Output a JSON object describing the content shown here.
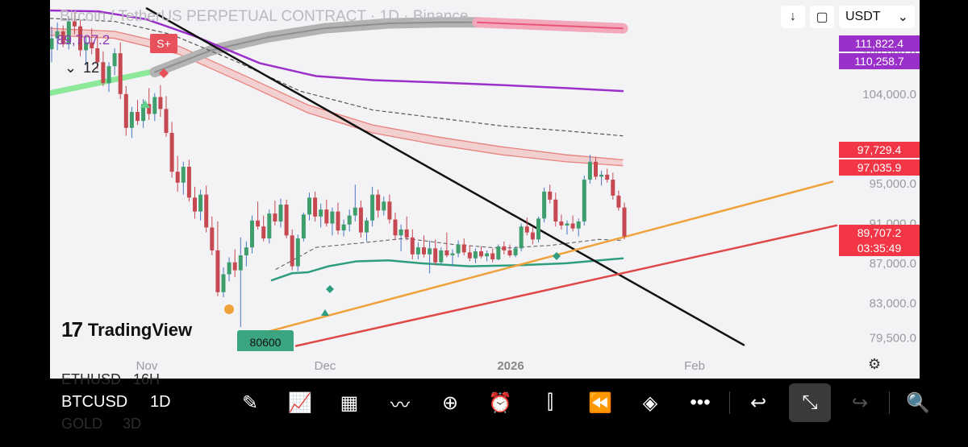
{
  "header": {
    "title": "Bitcoin / TetherUS PERPETUAL CONTRACT · 1D · Binance",
    "last_price": "89,707.2",
    "collapse_count": "12",
    "signal_label": "S+",
    "currency": "USDT"
  },
  "price_labels": [
    {
      "text": "111,822.4",
      "color": "#9b2fc9"
    },
    {
      "text": "110,258.7",
      "color": "#9b2fc9"
    },
    {
      "text": "97,729.4",
      "color": "#f23645"
    },
    {
      "text": "97,035.9",
      "color": "#f23645"
    },
    {
      "text": "89,707.2",
      "color": "#f23645"
    },
    {
      "text": "03:35:49",
      "color": "#f23645"
    }
  ],
  "low_label": "80600",
  "brand": "TradingView",
  "chart_data": {
    "type": "candlestick",
    "y_ticks": [
      "108,000.0",
      "104,000.0",
      "95,000.0",
      "91,000.0",
      "87,000.0",
      "83,000.0",
      "79,500.0"
    ],
    "x_ticks": [
      "Nov",
      "Dec",
      "2026",
      "Feb"
    ],
    "ylim": [
      78500,
      112800
    ],
    "candles": [
      [
        108500,
        110800,
        107200,
        109600
      ],
      [
        109600,
        111200,
        108400,
        110300
      ],
      [
        110300,
        110900,
        108700,
        109000
      ],
      [
        109000,
        111800,
        108500,
        111300
      ],
      [
        111300,
        112200,
        110000,
        110800
      ],
      [
        110800,
        111500,
        107800,
        108400
      ],
      [
        108400,
        109800,
        106900,
        109200
      ],
      [
        109200,
        110600,
        108000,
        108600
      ],
      [
        108600,
        109900,
        106500,
        107200
      ],
      [
        107200,
        108300,
        104800,
        105100
      ],
      [
        105100,
        107200,
        104200,
        106800
      ],
      [
        106800,
        108600,
        105900,
        108100
      ],
      [
        108100,
        109200,
        103500,
        104000
      ],
      [
        104000,
        104800,
        99800,
        100600
      ],
      [
        100600,
        102700,
        99600,
        102200
      ],
      [
        102200,
        103400,
        100900,
        101300
      ],
      [
        101300,
        103500,
        100600,
        103000
      ],
      [
        103000,
        104600,
        101400,
        102000
      ],
      [
        102000,
        104100,
        101300,
        103700
      ],
      [
        103700,
        104900,
        101700,
        102500
      ],
      [
        102500,
        103800,
        99700,
        100100
      ],
      [
        100100,
        101200,
        95600,
        96200
      ],
      [
        96200,
        97800,
        94200,
        95100
      ],
      [
        95100,
        97200,
        93900,
        96700
      ],
      [
        96700,
        97400,
        93200,
        93600
      ],
      [
        93600,
        94700,
        91500,
        92200
      ],
      [
        92200,
        94400,
        91300,
        93900
      ],
      [
        93900,
        94800,
        90100,
        90600
      ],
      [
        90600,
        91700,
        87800,
        88300
      ],
      [
        88300,
        91200,
        83700,
        84100
      ],
      [
        84100,
        86600,
        83600,
        85900
      ],
      [
        85900,
        87600,
        85200,
        87100
      ],
      [
        87100,
        88400,
        85600,
        86300
      ],
      [
        86300,
        89600,
        80600,
        87800
      ],
      [
        87800,
        89200,
        86700,
        88600
      ],
      [
        88600,
        91800,
        88000,
        91300
      ],
      [
        91300,
        93200,
        90400,
        90700
      ],
      [
        90700,
        91800,
        89200,
        89500
      ],
      [
        89500,
        92400,
        89000,
        92000
      ],
      [
        92000,
        93300,
        90800,
        91200
      ],
      [
        91200,
        93500,
        90600,
        92900
      ],
      [
        92900,
        93400,
        89500,
        89800
      ],
      [
        89800,
        90400,
        86300,
        86700
      ],
      [
        86700,
        89900,
        86200,
        89500
      ],
      [
        89500,
        92100,
        89200,
        91900
      ],
      [
        91900,
        94100,
        91300,
        93600
      ],
      [
        93600,
        94200,
        91200,
        91700
      ],
      [
        91700,
        93000,
        90600,
        92400
      ],
      [
        92400,
        93400,
        90700,
        91000
      ],
      [
        91000,
        92600,
        89800,
        92200
      ],
      [
        92200,
        93100,
        89900,
        90300
      ],
      [
        90300,
        91400,
        89700,
        90900
      ],
      [
        90900,
        92400,
        90200,
        91800
      ],
      [
        91800,
        94900,
        91200,
        92600
      ],
      [
        92600,
        93300,
        89600,
        90100
      ],
      [
        90100,
        91600,
        89200,
        91300
      ],
      [
        91300,
        94700,
        90700,
        93900
      ],
      [
        93900,
        94400,
        91600,
        92300
      ],
      [
        92300,
        93700,
        91800,
        93200
      ],
      [
        93200,
        93900,
        91000,
        91400
      ],
      [
        91400,
        92100,
        89400,
        89800
      ],
      [
        89800,
        90900,
        88200,
        90400
      ],
      [
        90400,
        91700,
        89300,
        89600
      ],
      [
        89600,
        90400,
        87400,
        87900
      ],
      [
        87900,
        89100,
        87400,
        88600
      ],
      [
        88600,
        89800,
        87600,
        87900
      ],
      [
        87900,
        89300,
        86000,
        88500
      ],
      [
        88500,
        89400,
        86800,
        87100
      ],
      [
        87100,
        88600,
        86900,
        88300
      ],
      [
        88300,
        90100,
        87600,
        87800
      ],
      [
        87800,
        88400,
        86700,
        88000
      ],
      [
        88000,
        89300,
        87600,
        88900
      ],
      [
        88900,
        89500,
        87800,
        88100
      ],
      [
        88100,
        88800,
        87200,
        87500
      ],
      [
        87500,
        88500,
        87000,
        88200
      ],
      [
        88200,
        88700,
        87500,
        87700
      ],
      [
        87700,
        88300,
        87200,
        88000
      ],
      [
        88000,
        88500,
        87100,
        87400
      ],
      [
        87400,
        88900,
        87300,
        88700
      ],
      [
        88700,
        89200,
        87900,
        88300
      ],
      [
        88300,
        88900,
        87600,
        87800
      ],
      [
        87800,
        88700,
        87600,
        88500
      ],
      [
        88500,
        91000,
        88200,
        90700
      ],
      [
        90700,
        91600,
        89800,
        90100
      ],
      [
        90100,
        90600,
        88900,
        89400
      ],
      [
        89400,
        91700,
        89100,
        91500
      ],
      [
        91500,
        94600,
        91100,
        94200
      ],
      [
        94200,
        94900,
        93000,
        93400
      ],
      [
        93400,
        94100,
        90700,
        91200
      ],
      [
        91200,
        91900,
        90400,
        90800
      ],
      [
        90800,
        91300,
        89900,
        91000
      ],
      [
        91000,
        91800,
        90200,
        90500
      ],
      [
        90500,
        91500,
        89700,
        91200
      ],
      [
        91200,
        95800,
        90800,
        95400
      ],
      [
        95400,
        97900,
        95000,
        97200
      ],
      [
        97200,
        97700,
        95400,
        95700
      ],
      [
        95700,
        96300,
        94800,
        95900
      ],
      [
        95900,
        96500,
        95100,
        95400
      ],
      [
        95400,
        96100,
        93400,
        93800
      ],
      [
        93800,
        94300,
        92300,
        92600
      ],
      [
        92600,
        93100,
        89400,
        89707.2
      ]
    ],
    "ma_purple": [
      [
        0,
        112400
      ],
      [
        60,
        112300
      ],
      [
        120,
        111500
      ],
      [
        180,
        109800
      ],
      [
        260,
        107100
      ],
      [
        330,
        105800
      ],
      [
        400,
        105400
      ],
      [
        471,
        105200
      ],
      [
        560,
        104900
      ],
      [
        640,
        104600
      ],
      [
        710,
        104300
      ]
    ],
    "ma_dashed": [
      [
        0,
        111600
      ],
      [
        80,
        111300
      ],
      [
        150,
        110000
      ],
      [
        230,
        107300
      ],
      [
        310,
        104300
      ],
      [
        400,
        102400
      ],
      [
        480,
        101600
      ],
      [
        560,
        100800
      ],
      [
        640,
        100300
      ],
      [
        710,
        99800
      ]
    ],
    "ma_band_top": [
      [
        0,
        110600
      ],
      [
        80,
        110300
      ],
      [
        160,
        108800
      ],
      [
        240,
        105900
      ],
      [
        320,
        102900
      ],
      [
        400,
        100900
      ],
      [
        480,
        99700
      ],
      [
        560,
        98700
      ],
      [
        640,
        97900
      ],
      [
        710,
        97400
      ]
    ],
    "ma_band_bot": [
      [
        0,
        109900
      ],
      [
        80,
        109600
      ],
      [
        160,
        108000
      ],
      [
        240,
        105100
      ],
      [
        320,
        102100
      ],
      [
        400,
        100100
      ],
      [
        480,
        98900
      ],
      [
        560,
        97900
      ],
      [
        640,
        97200
      ],
      [
        710,
        96800
      ]
    ],
    "ma_green": [
      [
        275,
        85300
      ],
      [
        300,
        86000
      ],
      [
        320,
        86100
      ],
      [
        345,
        86700
      ],
      [
        380,
        87200
      ],
      [
        420,
        87300
      ],
      [
        460,
        87000
      ],
      [
        520,
        86700
      ],
      [
        580,
        86800
      ],
      [
        640,
        87000
      ],
      [
        710,
        87500
      ]
    ],
    "ma_short_dashed": [
      [
        280,
        86400
      ],
      [
        330,
        88600
      ],
      [
        380,
        89000
      ],
      [
        440,
        89500
      ],
      [
        500,
        88900
      ],
      [
        560,
        88500
      ],
      [
        620,
        88800
      ],
      [
        680,
        89400
      ],
      [
        710,
        89300
      ]
    ],
    "gray_arc": [
      [
        130,
        106200
      ],
      [
        200,
        108400
      ],
      [
        270,
        109700
      ],
      [
        340,
        110600
      ],
      [
        420,
        111100
      ],
      [
        480,
        111200
      ],
      [
        530,
        111200
      ]
    ],
    "gray_arc_pink": [
      [
        530,
        111200
      ],
      [
        710,
        110600
      ]
    ],
    "green_band": [
      [
        0,
        104100
      ],
      [
        130,
        106300
      ]
    ],
    "trend_black": [
      [
        120,
        112600
      ],
      [
        860,
        78800
      ]
    ],
    "trend_orange": [
      [
        245,
        79600
      ],
      [
        970,
        95200
      ]
    ],
    "trend_red": [
      [
        305,
        78700
      ],
      [
        975,
        90800
      ]
    ]
  }
}
